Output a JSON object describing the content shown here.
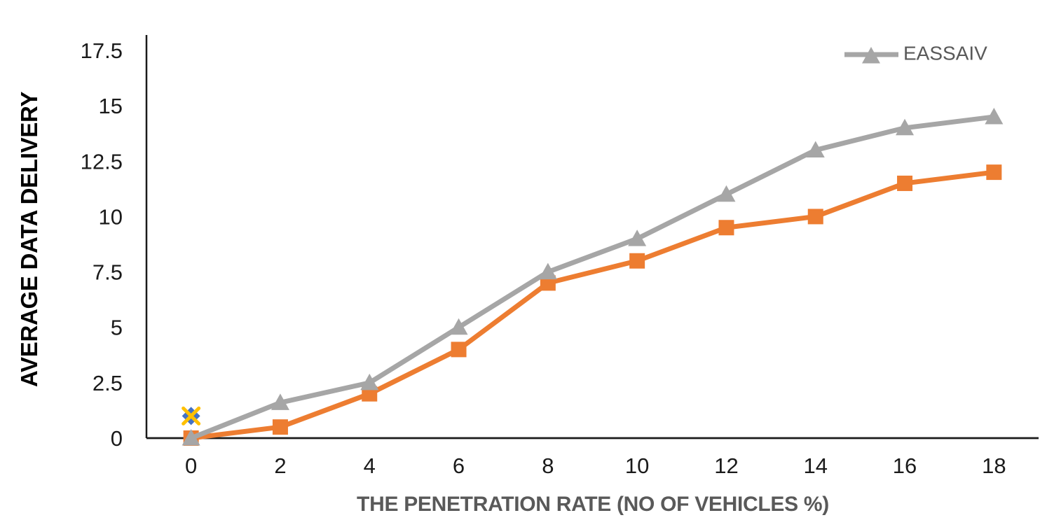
{
  "chart_data": {
    "type": "line",
    "title": "",
    "xlabel": "THE PENETRATION RATE (NO OF VEHICLES %)",
    "ylabel": "AVERAGE DATA DELIVERY",
    "categories": [
      "0",
      "2",
      "4",
      "6",
      "8",
      "10",
      "12",
      "14",
      "16",
      "18"
    ],
    "x_values": [
      0,
      2,
      4,
      6,
      8,
      10,
      12,
      14,
      16,
      18
    ],
    "yticks": [
      "0",
      "2.5",
      "5",
      "7.5",
      "10",
      "12.5",
      "15",
      "17.5"
    ],
    "ylim": [
      0,
      17.5
    ],
    "grid": false,
    "axis_color": "#1a1a1a",
    "tick_color": "#1a1a1a",
    "series": [
      {
        "name": "",
        "marker": "diamond",
        "color": "#4472C4",
        "line": false,
        "in_legend": false,
        "values": [
          1,
          null,
          null,
          null,
          null,
          null,
          null,
          null,
          null,
          null
        ]
      },
      {
        "name": "",
        "marker": "square",
        "color": "#ED7D31",
        "line": true,
        "in_legend": false,
        "values": [
          0,
          0.5,
          2,
          4,
          7,
          8,
          9.5,
          10,
          11.5,
          12
        ]
      },
      {
        "name": "EASSAIV",
        "marker": "triangle",
        "color": "#A6A6A6",
        "line": true,
        "in_legend": true,
        "values": [
          0,
          1.6,
          2.5,
          5,
          7.5,
          9,
          11,
          13,
          14,
          14.5
        ]
      },
      {
        "name": "",
        "marker": "x",
        "color": "#FFC000",
        "line": false,
        "in_legend": false,
        "values": [
          1,
          null,
          null,
          null,
          null,
          null,
          null,
          null,
          null,
          null
        ]
      }
    ],
    "legend": {
      "position": "top-right",
      "label": "EASSAIV",
      "text_color": "#595959"
    }
  }
}
